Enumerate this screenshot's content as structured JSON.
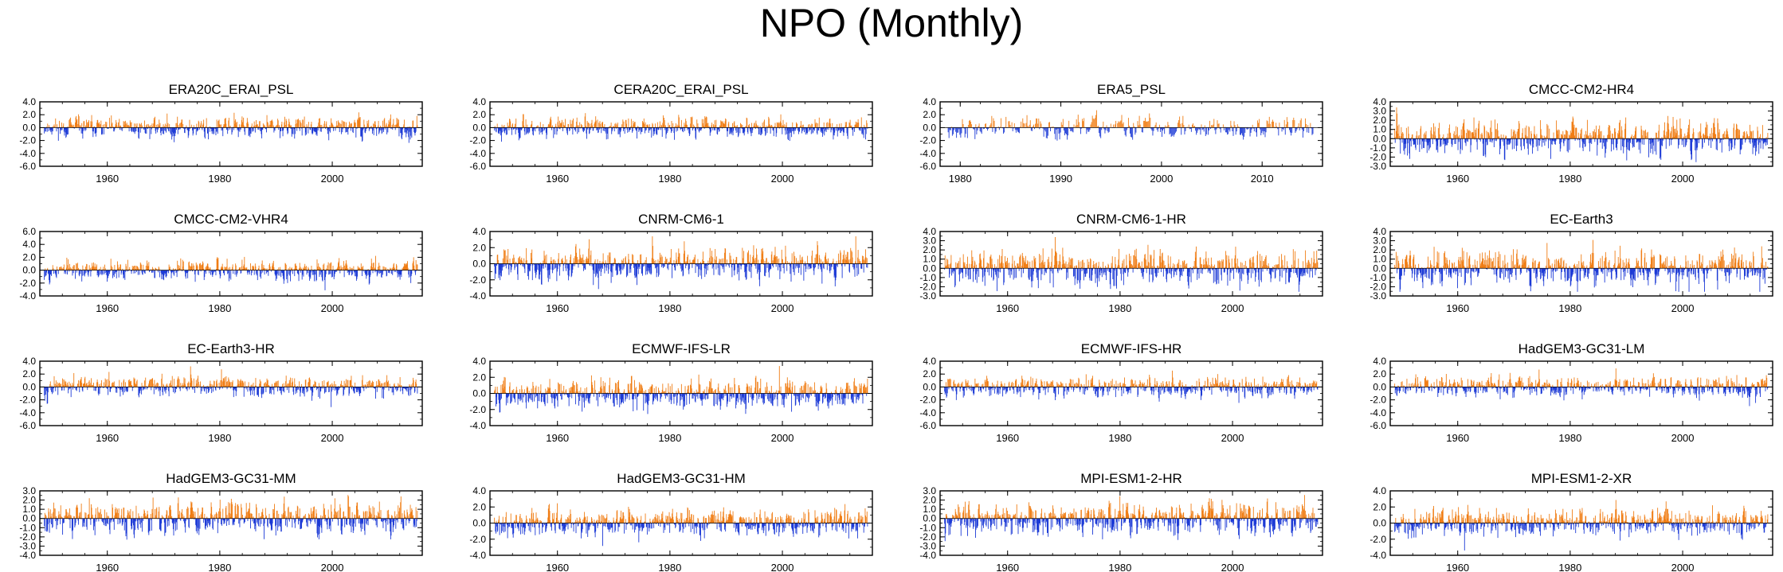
{
  "figure": {
    "title": "NPO (Monthly)"
  },
  "colors": {
    "positive": "#f07d14",
    "negative": "#1c3ad6",
    "axis": "#000000"
  },
  "chart_data": [
    {
      "type": "bar",
      "title": "ERA20C_ERAI_PSL",
      "xlim": [
        1948,
        2016
      ],
      "xticks": [
        1960,
        1980,
        2000
      ],
      "ylim": [
        -6,
        4
      ],
      "yticks": [
        4,
        2,
        0,
        -2,
        -4,
        -6
      ],
      "ytick_labels": [
        "4.0",
        "2.0",
        "0.0",
        "-2.0",
        "-4.0",
        "-6.0"
      ],
      "amp": 1.2,
      "seed": 11
    },
    {
      "type": "bar",
      "title": "CERA20C_ERAI_PSL",
      "xlim": [
        1948,
        2016
      ],
      "xticks": [
        1960,
        1980,
        2000
      ],
      "ylim": [
        -6,
        4
      ],
      "yticks": [
        4,
        2,
        0,
        -2,
        -4,
        -6
      ],
      "ytick_labels": [
        "4.0",
        "2.0",
        "0.0",
        "-2.0",
        "-4.0",
        "-6.0"
      ],
      "amp": 1.2,
      "seed": 23
    },
    {
      "type": "bar",
      "title": "ERA5_PSL",
      "xlim": [
        1978,
        2016
      ],
      "xticks": [
        1980,
        1990,
        2000,
        2010
      ],
      "ylim": [
        -6,
        4
      ],
      "yticks": [
        4,
        2,
        0,
        -2,
        -4,
        -6
      ],
      "ytick_labels": [
        "4.0",
        "2.0",
        "0.0",
        "-2.0",
        "-4.0",
        "-6.0"
      ],
      "amp": 1.3,
      "seed": 37
    },
    {
      "type": "bar",
      "title": "CMCC-CM2-HR4",
      "xlim": [
        1948,
        2016
      ],
      "xticks": [
        1960,
        1980,
        2000
      ],
      "ylim": [
        -3,
        4
      ],
      "yticks": [
        4,
        3,
        2,
        1,
        0,
        -1,
        -2,
        -3
      ],
      "ytick_labels": [
        "4.0",
        "3.0",
        "2.0",
        "1.0",
        "0.0",
        "-1.0",
        "-2.0",
        "-3.0"
      ],
      "amp": 1.4,
      "seed": 41
    },
    {
      "type": "bar",
      "title": "CMCC-CM2-VHR4",
      "xlim": [
        1948,
        2016
      ],
      "xticks": [
        1960,
        1980,
        2000
      ],
      "ylim": [
        -4,
        6
      ],
      "yticks": [
        6,
        4,
        2,
        0,
        -2,
        -4
      ],
      "ytick_labels": [
        "6.0",
        "4.0",
        "2.0",
        "0.0",
        "-2.0",
        "-4.0"
      ],
      "amp": 1.2,
      "seed": 53
    },
    {
      "type": "bar",
      "title": "CNRM-CM6-1",
      "xlim": [
        1948,
        2016
      ],
      "xticks": [
        1960,
        1980,
        2000
      ],
      "ylim": [
        -4,
        4
      ],
      "yticks": [
        4,
        2,
        0,
        -2,
        -4
      ],
      "ytick_labels": [
        "4.0",
        "2.0",
        "0.0",
        "-2.0",
        "-4.0"
      ],
      "amp": 1.5,
      "seed": 67
    },
    {
      "type": "bar",
      "title": "CNRM-CM6-1-HR",
      "xlim": [
        1948,
        2016
      ],
      "xticks": [
        1960,
        1980,
        2000
      ],
      "ylim": [
        -3,
        4
      ],
      "yticks": [
        4,
        3,
        2,
        1,
        0,
        -1,
        -2,
        -3
      ],
      "ytick_labels": [
        "4.0",
        "3.0",
        "2.0",
        "1.0",
        "0.0",
        "-1.0",
        "-2.0",
        "-3.0"
      ],
      "amp": 1.4,
      "seed": 71
    },
    {
      "type": "bar",
      "title": "EC-Earth3",
      "xlim": [
        1948,
        2016
      ],
      "xticks": [
        1960,
        1980,
        2000
      ],
      "ylim": [
        -3,
        4
      ],
      "yticks": [
        4,
        3,
        2,
        1,
        0,
        -1,
        -2,
        -3
      ],
      "ytick_labels": [
        "4.0",
        "3.0",
        "2.0",
        "1.0",
        "0.0",
        "-1.0",
        "-2.0",
        "-3.0"
      ],
      "amp": 1.4,
      "seed": 83
    },
    {
      "type": "bar",
      "title": "EC-Earth3-HR",
      "xlim": [
        1948,
        2016
      ],
      "xticks": [
        1960,
        1980,
        2000
      ],
      "ylim": [
        -6,
        4
      ],
      "yticks": [
        4,
        2,
        0,
        -2,
        -4,
        -6
      ],
      "ytick_labels": [
        "4.0",
        "2.0",
        "0.0",
        "-2.0",
        "-4.0",
        "-6.0"
      ],
      "amp": 1.2,
      "seed": 97
    },
    {
      "type": "bar",
      "title": "ECMWF-IFS-LR",
      "xlim": [
        1948,
        2016
      ],
      "xticks": [
        1960,
        1980,
        2000
      ],
      "ylim": [
        -4,
        4
      ],
      "yticks": [
        4,
        2,
        0,
        -2,
        -4
      ],
      "ytick_labels": [
        "4.0",
        "2.0",
        "0.0",
        "-2.0",
        "-4.0"
      ],
      "amp": 1.4,
      "seed": 101
    },
    {
      "type": "bar",
      "title": "ECMWF-IFS-HR",
      "xlim": [
        1948,
        2016
      ],
      "xticks": [
        1960,
        1980,
        2000
      ],
      "ylim": [
        -6,
        4
      ],
      "yticks": [
        4,
        2,
        0,
        -2,
        -4,
        -6
      ],
      "ytick_labels": [
        "4.0",
        "2.0",
        "0.0",
        "-2.0",
        "-4.0",
        "-6.0"
      ],
      "amp": 1.2,
      "seed": 113
    },
    {
      "type": "bar",
      "title": "HadGEM3-GC31-LM",
      "xlim": [
        1948,
        2016
      ],
      "xticks": [
        1960,
        1980,
        2000
      ],
      "ylim": [
        -6,
        4
      ],
      "yticks": [
        4,
        2,
        0,
        -2,
        -4,
        -6
      ],
      "ytick_labels": [
        "4.0",
        "2.0",
        "0.0",
        "-2.0",
        "-4.0",
        "-6.0"
      ],
      "amp": 1.2,
      "seed": 127
    },
    {
      "type": "bar",
      "title": "HadGEM3-GC31-MM",
      "xlim": [
        1948,
        2016
      ],
      "xticks": [
        1960,
        1980,
        2000
      ],
      "ylim": [
        -4,
        3
      ],
      "yticks": [
        3,
        2,
        1,
        0,
        -1,
        -2,
        -3,
        -4
      ],
      "ytick_labels": [
        "3.0",
        "2.0",
        "1.0",
        "0.0",
        "-1.0",
        "-2.0",
        "-3.0",
        "-4.0"
      ],
      "amp": 1.3,
      "seed": 131
    },
    {
      "type": "bar",
      "title": "HadGEM3-GC31-HM",
      "xlim": [
        1948,
        2016
      ],
      "xticks": [
        1960,
        1980,
        2000
      ],
      "ylim": [
        -4,
        4
      ],
      "yticks": [
        4,
        2,
        0,
        -2,
        -4
      ],
      "ytick_labels": [
        "4.0",
        "2.0",
        "0.0",
        "-2.0",
        "-4.0"
      ],
      "amp": 1.3,
      "seed": 149
    },
    {
      "type": "bar",
      "title": "MPI-ESM1-2-HR",
      "xlim": [
        1948,
        2016
      ],
      "xticks": [
        1960,
        1980,
        2000
      ],
      "ylim": [
        -4,
        3
      ],
      "yticks": [
        3,
        2,
        1,
        0,
        -1,
        -2,
        -3,
        -4
      ],
      "ytick_labels": [
        "3.0",
        "2.0",
        "1.0",
        "0.0",
        "-1.0",
        "-2.0",
        "-3.0",
        "-4.0"
      ],
      "amp": 1.3,
      "seed": 157
    },
    {
      "type": "bar",
      "title": "MPI-ESM1-2-XR",
      "xlim": [
        1948,
        2016
      ],
      "xticks": [
        1960,
        1980,
        2000
      ],
      "ylim": [
        -4,
        4
      ],
      "yticks": [
        4,
        2,
        0,
        -2,
        -4
      ],
      "ytick_labels": [
        "4.0",
        "2.0",
        "0.0",
        "-2.0",
        "-4.0"
      ],
      "amp": 1.3,
      "seed": 163
    }
  ]
}
